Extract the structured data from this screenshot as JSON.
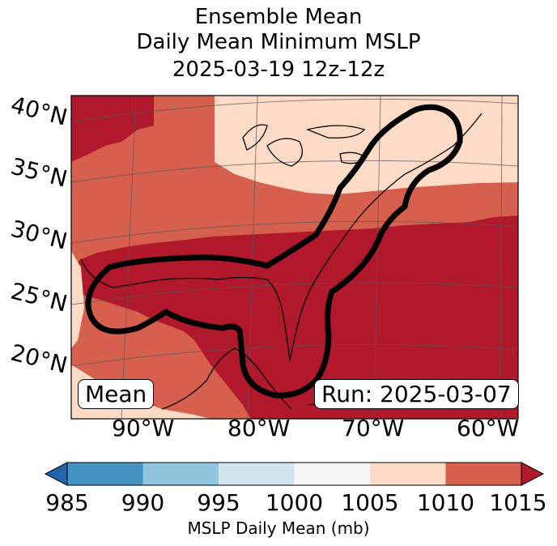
{
  "title": {
    "line1": "Ensemble Mean",
    "line2": "Daily Mean Minimum MSLP",
    "line3": "2025-03-19 12z-12z"
  },
  "lat_labels": [
    "40°N",
    "35°N",
    "30°N",
    "25°N",
    "20°N"
  ],
  "lon_labels": [
    "90°W",
    "80°W",
    "70°W",
    "60°W"
  ],
  "annotations": {
    "left": "Mean",
    "right": "Run: 2025-03-07"
  },
  "colorbar": {
    "ticks": [
      "985",
      "990",
      "995",
      "1000",
      "1005",
      "1010",
      "1015"
    ],
    "label": "MSLP Daily Mean (mb)",
    "bins": [
      {
        "range": "<985",
        "color": "#2166ac"
      },
      {
        "range": "985-990",
        "color": "#4393c3"
      },
      {
        "range": "990-995",
        "color": "#92c5de"
      },
      {
        "range": "995-1000",
        "color": "#d1e5f0"
      },
      {
        "range": "1000-1005",
        "color": "#f7f7f7"
      },
      {
        "range": "1005-1010",
        "color": "#fddbc7"
      },
      {
        "range": "1010-1015",
        "color": "#d6604d"
      },
      {
        "range": ">1015",
        "color": "#b2182b"
      }
    ]
  },
  "colors": {
    "light": "#fddbc7",
    "mid": "#d6604d",
    "dark": "#b2182b"
  }
}
